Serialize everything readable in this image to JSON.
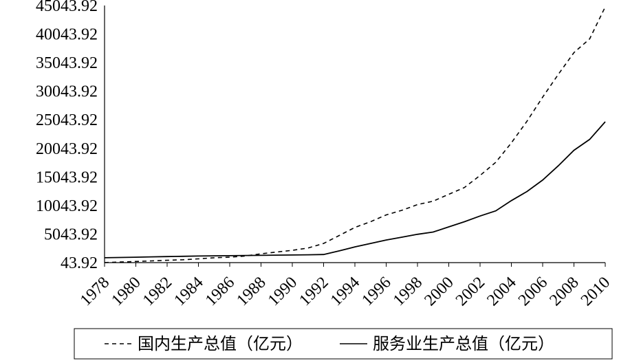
{
  "chart_data": {
    "type": "line",
    "title": "",
    "xlabel": "",
    "ylabel": "",
    "ylim": [
      43.92,
      45043.92
    ],
    "yticks": [
      "45043.92",
      "40043.92",
      "35043.92",
      "30043.92",
      "25043.92",
      "20043.92",
      "15043.92",
      "10043.92",
      "5043.92",
      "43.92"
    ],
    "xticks": [
      "1978",
      "1980",
      "1982",
      "1984",
      "1986",
      "1988",
      "1990",
      "1992",
      "1994",
      "1996",
      "1998",
      "2000",
      "2002",
      "2004",
      "2006",
      "2008",
      "2010"
    ],
    "x": [
      1978,
      1979,
      1980,
      1981,
      1982,
      1983,
      1984,
      1985,
      1986,
      1987,
      1988,
      1989,
      1990,
      1991,
      1992,
      1993,
      1994,
      1995,
      1996,
      1997,
      1998,
      1999,
      2000,
      2001,
      2002,
      2003,
      2004,
      2005,
      2006,
      2007,
      2008,
      2009,
      2010
    ],
    "series": [
      {
        "name": "国内生产总值（亿元）",
        "style": "dashed",
        "values": [
          50,
          150,
          250,
          350,
          450,
          550,
          700,
          900,
          1000,
          1200,
          1600,
          1900,
          2200,
          2600,
          3400,
          4800,
          6200,
          7200,
          8400,
          9200,
          10200,
          10800,
          12000,
          13200,
          15300,
          17600,
          21000,
          24800,
          29000,
          33000,
          36800,
          39200,
          44800
        ]
      },
      {
        "name": "服务业生产总值（亿元）",
        "style": "solid",
        "values": [
          900,
          950,
          1000,
          1050,
          1100,
          1150,
          1200,
          1230,
          1260,
          1290,
          1320,
          1350,
          1380,
          1420,
          1460,
          2100,
          2800,
          3400,
          4000,
          4500,
          5000,
          5400,
          6300,
          7200,
          8200,
          9100,
          10900,
          12500,
          14500,
          17000,
          19700,
          21600,
          24700
        ]
      }
    ],
    "legend_position": "bottom",
    "grid": false
  }
}
